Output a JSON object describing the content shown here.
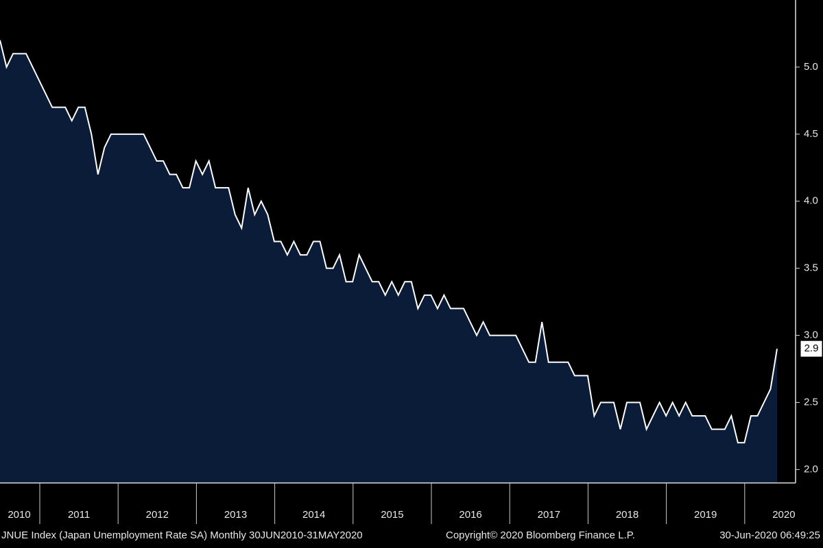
{
  "chart_data": {
    "type": "area",
    "series": [
      {
        "name": "JNUE Index",
        "color": "#ffffff",
        "fill": "#0b1c38",
        "values": [
          5.2,
          5.0,
          5.1,
          5.1,
          5.1,
          5.0,
          4.9,
          4.8,
          4.7,
          4.7,
          4.7,
          4.6,
          4.7,
          4.7,
          4.5,
          4.2,
          4.4,
          4.5,
          4.5,
          4.5,
          4.5,
          4.5,
          4.5,
          4.4,
          4.3,
          4.3,
          4.2,
          4.2,
          4.1,
          4.1,
          4.3,
          4.2,
          4.3,
          4.1,
          4.1,
          4.1,
          3.9,
          3.8,
          4.1,
          3.9,
          4.0,
          3.9,
          3.7,
          3.7,
          3.6,
          3.7,
          3.6,
          3.6,
          3.7,
          3.7,
          3.5,
          3.5,
          3.6,
          3.4,
          3.4,
          3.6,
          3.5,
          3.4,
          3.4,
          3.3,
          3.4,
          3.3,
          3.4,
          3.4,
          3.2,
          3.3,
          3.3,
          3.2,
          3.3,
          3.2,
          3.2,
          3.2,
          3.1,
          3.0,
          3.1,
          3.0,
          3.0,
          3.0,
          3.0,
          3.0,
          2.9,
          2.8,
          2.8,
          3.1,
          2.8,
          2.8,
          2.8,
          2.8,
          2.7,
          2.7,
          2.7,
          2.4,
          2.5,
          2.5,
          2.5,
          2.3,
          2.5,
          2.5,
          2.5,
          2.3,
          2.4,
          2.5,
          2.4,
          2.5,
          2.4,
          2.5,
          2.4,
          2.4,
          2.4,
          2.3,
          2.3,
          2.3,
          2.4,
          2.2,
          2.2,
          2.4,
          2.4,
          2.5,
          2.6,
          2.9
        ]
      }
    ],
    "year_labels": [
      "2010",
      "2011",
      "2012",
      "2013",
      "2014",
      "2015",
      "2016",
      "2017",
      "2018",
      "2019",
      "2020"
    ],
    "ylim": [
      1.9,
      5.5
    ],
    "yticks": [
      {
        "value": 2,
        "label": "2.0"
      },
      {
        "value": 2.5,
        "label": "2.5"
      },
      {
        "value": 3,
        "label": "3.0"
      },
      {
        "value": 3.5,
        "label": "3.5"
      },
      {
        "value": 4,
        "label": "4.0"
      },
      {
        "value": 4.5,
        "label": "4.5"
      },
      {
        "value": 5,
        "label": "5.0"
      }
    ],
    "footer": {
      "left": "JNUE Index (Japan Unemployment Rate SA)  Monthly 30JUN2010-31MAY2020",
      "center": "Copyright© 2020 Bloomberg Finance L.P.",
      "right": "30-Jun-2020 06:49:25"
    }
  }
}
